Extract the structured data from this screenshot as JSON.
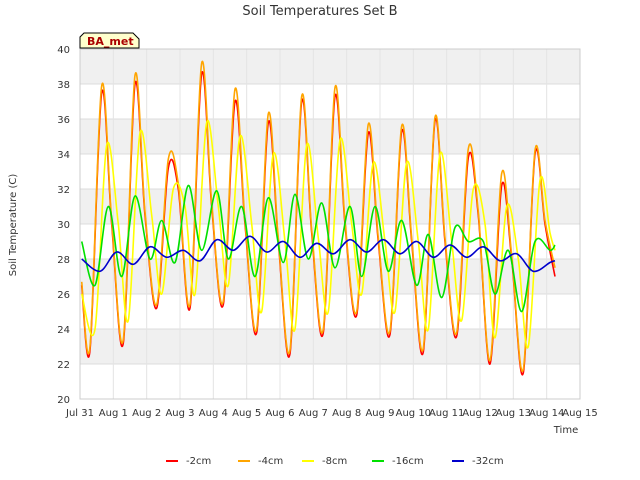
{
  "chart_data": {
    "type": "line",
    "title": "Soil Temperatures Set B",
    "xlabel": "Time",
    "ylabel": "Soil Temperature (C)",
    "ylim": [
      20,
      40
    ],
    "yticks": [
      20,
      22,
      24,
      26,
      28,
      30,
      32,
      34,
      36,
      38,
      40
    ],
    "xlim": [
      0,
      15
    ],
    "xticks": [
      0,
      1,
      2,
      3,
      4,
      5,
      6,
      7,
      8,
      9,
      10,
      11,
      12,
      13,
      14,
      15
    ],
    "xtick_labels": [
      "Jul 31",
      "Aug 1",
      "Aug 2",
      "Aug 3",
      "Aug 4",
      "Aug 5",
      "Aug 6",
      "Aug 7",
      "Aug 8",
      "Aug 9",
      "Aug 10",
      "Aug 11",
      "Aug 12",
      "Aug 13",
      "Aug 14",
      "Aug 15"
    ],
    "grid": "horizontal bands",
    "legend_position": "bottom",
    "site_badge": "BA_met",
    "series": [
      {
        "name": "-2cm",
        "color": "#ff0000",
        "x": [
          0.05,
          0.3,
          0.65,
          0.95,
          1.3,
          1.65,
          1.95,
          2.3,
          2.65,
          2.95,
          3.3,
          3.65,
          3.95,
          4.3,
          4.65,
          4.95,
          5.3,
          5.65,
          5.95,
          6.3,
          6.65,
          6.95,
          7.3,
          7.65,
          7.95,
          8.3,
          8.65,
          8.95,
          9.3,
          9.65,
          9.95,
          10.3,
          10.65,
          10.95,
          11.3,
          11.65,
          11.95,
          12.3,
          12.65,
          12.95,
          13.3,
          13.65,
          13.95,
          14.25
        ],
        "y": [
          26.5,
          22.8,
          37.5,
          30.0,
          23.2,
          38.0,
          30.5,
          25.2,
          33.2,
          32.0,
          25.2,
          38.6,
          31.0,
          25.4,
          37.0,
          30.0,
          23.8,
          35.8,
          29.0,
          22.6,
          37.0,
          29.5,
          23.8,
          37.3,
          30.0,
          24.8,
          35.2,
          29.0,
          23.7,
          35.3,
          29.0,
          22.7,
          35.9,
          29.0,
          23.6,
          33.8,
          30.5,
          22.0,
          32.2,
          28.0,
          21.5,
          34.0,
          30.0,
          27.0
        ]
      },
      {
        "name": "-4cm",
        "color": "#ffa500",
        "x": [
          0.05,
          0.3,
          0.65,
          0.95,
          1.3,
          1.65,
          1.95,
          2.3,
          2.65,
          2.95,
          3.3,
          3.65,
          3.95,
          4.3,
          4.65,
          4.95,
          5.3,
          5.65,
          5.95,
          6.3,
          6.65,
          6.95,
          7.3,
          7.65,
          7.95,
          8.3,
          8.65,
          8.95,
          9.3,
          9.65,
          9.95,
          10.3,
          10.65,
          10.95,
          11.3,
          11.65,
          11.95,
          12.3,
          12.65,
          12.95,
          13.3,
          13.65,
          13.95,
          14.25
        ],
        "y": [
          26.7,
          23.0,
          37.9,
          30.2,
          23.4,
          38.5,
          30.7,
          25.4,
          33.7,
          32.3,
          25.4,
          39.2,
          31.2,
          25.6,
          37.7,
          30.2,
          24.0,
          36.3,
          29.2,
          22.8,
          37.3,
          29.7,
          24.0,
          37.8,
          30.2,
          25.0,
          35.7,
          29.2,
          23.9,
          35.6,
          29.2,
          22.9,
          36.1,
          29.2,
          23.8,
          34.3,
          30.7,
          22.2,
          32.9,
          28.2,
          21.7,
          34.2,
          30.2,
          27.5
        ]
      },
      {
        "name": "-8cm",
        "color": "#ffff00",
        "x": [
          0.05,
          0.45,
          0.8,
          1.15,
          1.45,
          1.8,
          2.15,
          2.45,
          2.8,
          3.15,
          3.45,
          3.8,
          4.15,
          4.45,
          4.8,
          5.15,
          5.45,
          5.8,
          6.15,
          6.45,
          6.8,
          7.15,
          7.45,
          7.8,
          8.15,
          8.45,
          8.8,
          9.15,
          9.45,
          9.8,
          10.15,
          10.45,
          10.8,
          11.15,
          11.45,
          11.8,
          12.15,
          12.45,
          12.8,
          13.15,
          13.45,
          13.8,
          14.1,
          14.25
        ],
        "y": [
          26.0,
          24.0,
          34.5,
          30.0,
          24.5,
          35.2,
          30.5,
          26.0,
          32.0,
          31.0,
          26.0,
          35.8,
          31.0,
          26.5,
          35.0,
          30.0,
          25.0,
          34.0,
          29.0,
          24.0,
          34.5,
          29.2,
          25.0,
          34.8,
          30.0,
          26.0,
          33.5,
          29.0,
          25.0,
          33.5,
          29.0,
          24.0,
          34.0,
          29.0,
          24.5,
          32.0,
          30.0,
          23.5,
          31.0,
          28.0,
          23.0,
          32.5,
          29.5,
          28.5
        ]
      },
      {
        "name": "-16cm",
        "color": "#00e000",
        "x": [
          0.05,
          0.45,
          0.85,
          1.25,
          1.65,
          2.1,
          2.45,
          2.85,
          3.25,
          3.65,
          4.1,
          4.45,
          4.85,
          5.25,
          5.65,
          6.1,
          6.45,
          6.85,
          7.25,
          7.65,
          8.1,
          8.45,
          8.85,
          9.25,
          9.65,
          10.1,
          10.45,
          10.85,
          11.25,
          11.65,
          12.1,
          12.45,
          12.85,
          13.25,
          13.65,
          14.1,
          14.25
        ],
        "y": [
          29.0,
          26.5,
          31.0,
          27.0,
          31.6,
          28.0,
          30.2,
          27.8,
          32.2,
          28.5,
          31.9,
          28.0,
          31.0,
          27.0,
          31.5,
          27.8,
          31.7,
          28.0,
          31.2,
          27.5,
          31.0,
          27.0,
          31.0,
          27.3,
          30.2,
          26.5,
          29.4,
          25.8,
          29.8,
          29.0,
          29.0,
          26.0,
          28.5,
          25.0,
          29.0,
          28.5,
          28.8
        ]
      },
      {
        "name": "-32cm",
        "color": "#0000cc",
        "x": [
          0.05,
          0.6,
          1.1,
          1.6,
          2.1,
          2.6,
          3.1,
          3.6,
          4.1,
          4.6,
          5.1,
          5.6,
          6.1,
          6.6,
          7.1,
          7.6,
          8.1,
          8.6,
          9.1,
          9.6,
          10.1,
          10.6,
          11.1,
          11.6,
          12.1,
          12.6,
          13.1,
          13.6,
          14.1,
          14.25
        ],
        "y": [
          28.0,
          27.3,
          28.4,
          27.7,
          28.7,
          28.1,
          28.5,
          27.9,
          29.1,
          28.5,
          29.3,
          28.4,
          29.0,
          28.1,
          28.9,
          28.3,
          29.1,
          28.4,
          29.1,
          28.3,
          29.0,
          28.1,
          28.8,
          28.1,
          28.7,
          27.9,
          28.3,
          27.3,
          27.8,
          27.9
        ]
      }
    ]
  }
}
